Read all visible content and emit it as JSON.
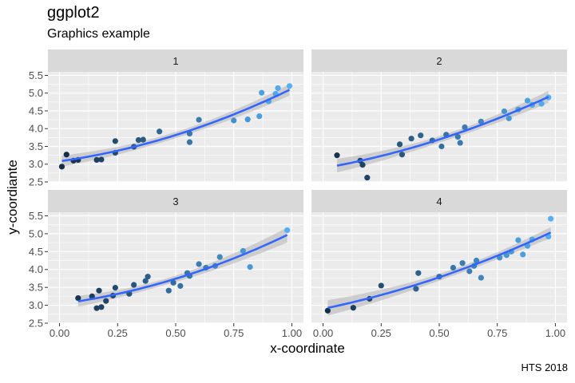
{
  "title": "ggplot2",
  "subtitle": "Graphics example",
  "caption": "HTS 2018",
  "colors": {
    "panel_bg": "#ebebeb",
    "strip_bg": "#d9d9d9",
    "grid": "#ffffff",
    "line": "#3366ff",
    "ribbon": "#b3b3b3",
    "point_low": "#132b43",
    "point_high": "#56b1f7"
  },
  "chart_data": {
    "type": "scatter",
    "facets": [
      "1",
      "2",
      "3",
      "4"
    ],
    "xlabel": "x-coordinate",
    "ylabel": "y-coordiante",
    "xlim": [
      -0.05,
      1.05
    ],
    "ylim": [
      2.5,
      5.6
    ],
    "xticks": [
      0.0,
      0.25,
      0.5,
      0.75,
      1.0
    ],
    "xtick_labels": [
      "0.00",
      "0.25",
      "0.50",
      "0.75",
      "1.00"
    ],
    "yticks": [
      2.5,
      3.0,
      3.5,
      4.0,
      4.5,
      5.0,
      5.5
    ],
    "ytick_labels": [
      "2.5",
      "3.0",
      "3.5",
      "4.0",
      "4.5",
      "5.0",
      "5.5"
    ],
    "smooth": "quadratic fit with confidence band",
    "color_scale": "continuous by x, dark blue to light blue",
    "panels": [
      {
        "facet": "1",
        "points": [
          [
            0.01,
            2.93
          ],
          [
            0.03,
            3.27
          ],
          [
            0.06,
            3.1
          ],
          [
            0.08,
            3.12
          ],
          [
            0.16,
            3.12
          ],
          [
            0.18,
            3.13
          ],
          [
            0.24,
            3.32
          ],
          [
            0.24,
            3.65
          ],
          [
            0.32,
            3.49
          ],
          [
            0.34,
            3.68
          ],
          [
            0.36,
            3.69
          ],
          [
            0.43,
            3.92
          ],
          [
            0.56,
            3.86
          ],
          [
            0.56,
            3.62
          ],
          [
            0.6,
            4.25
          ],
          [
            0.75,
            4.23
          ],
          [
            0.81,
            4.26
          ],
          [
            0.86,
            4.35
          ],
          [
            0.87,
            5.01
          ],
          [
            0.9,
            4.77
          ],
          [
            0.93,
            4.98
          ],
          [
            0.94,
            5.14
          ],
          [
            0.99,
            5.2
          ]
        ],
        "fit": [
          [
            0.01,
            3.09
          ],
          [
            0.25,
            3.37
          ],
          [
            0.5,
            3.81
          ],
          [
            0.75,
            4.39
          ],
          [
            0.99,
            5.08
          ]
        ]
      },
      {
        "facet": "2",
        "points": [
          [
            0.06,
            3.25
          ],
          [
            0.16,
            3.1
          ],
          [
            0.17,
            2.98
          ],
          [
            0.19,
            2.62
          ],
          [
            0.33,
            3.56
          ],
          [
            0.34,
            3.27
          ],
          [
            0.38,
            3.72
          ],
          [
            0.42,
            3.81
          ],
          [
            0.47,
            3.67
          ],
          [
            0.51,
            3.5
          ],
          [
            0.53,
            3.83
          ],
          [
            0.58,
            3.77
          ],
          [
            0.59,
            3.6
          ],
          [
            0.61,
            4.04
          ],
          [
            0.68,
            4.2
          ],
          [
            0.78,
            4.49
          ],
          [
            0.8,
            4.29
          ],
          [
            0.84,
            4.54
          ],
          [
            0.88,
            4.79
          ],
          [
            0.9,
            4.67
          ],
          [
            0.94,
            4.7
          ],
          [
            0.97,
            4.88
          ]
        ],
        "fit": [
          [
            0.06,
            2.98
          ],
          [
            0.3,
            3.32
          ],
          [
            0.55,
            3.77
          ],
          [
            0.8,
            4.33
          ],
          [
            0.97,
            4.85
          ]
        ]
      },
      {
        "facet": "3",
        "points": [
          [
            0.08,
            3.2
          ],
          [
            0.14,
            3.25
          ],
          [
            0.16,
            2.92
          ],
          [
            0.17,
            3.41
          ],
          [
            0.18,
            2.95
          ],
          [
            0.2,
            3.12
          ],
          [
            0.23,
            3.27
          ],
          [
            0.24,
            3.49
          ],
          [
            0.3,
            3.32
          ],
          [
            0.32,
            3.57
          ],
          [
            0.37,
            3.68
          ],
          [
            0.38,
            3.8
          ],
          [
            0.47,
            3.41
          ],
          [
            0.49,
            3.63
          ],
          [
            0.52,
            3.54
          ],
          [
            0.55,
            3.9
          ],
          [
            0.56,
            3.82
          ],
          [
            0.6,
            4.15
          ],
          [
            0.63,
            4.05
          ],
          [
            0.67,
            4.1
          ],
          [
            0.69,
            4.35
          ],
          [
            0.79,
            4.52
          ],
          [
            0.82,
            4.07
          ],
          [
            0.98,
            5.1
          ]
        ],
        "fit": [
          [
            0.08,
            3.16
          ],
          [
            0.3,
            3.39
          ],
          [
            0.55,
            3.8
          ],
          [
            0.8,
            4.35
          ],
          [
            0.98,
            4.93
          ]
        ]
      },
      {
        "facet": "4",
        "points": [
          [
            0.02,
            2.85
          ],
          [
            0.13,
            2.93
          ],
          [
            0.2,
            3.18
          ],
          [
            0.25,
            3.55
          ],
          [
            0.4,
            3.46
          ],
          [
            0.41,
            3.9
          ],
          [
            0.5,
            3.8
          ],
          [
            0.56,
            4.05
          ],
          [
            0.6,
            4.18
          ],
          [
            0.63,
            3.95
          ],
          [
            0.65,
            4.1
          ],
          [
            0.66,
            4.25
          ],
          [
            0.68,
            3.77
          ],
          [
            0.76,
            4.33
          ],
          [
            0.79,
            4.4
          ],
          [
            0.81,
            4.5
          ],
          [
            0.84,
            4.82
          ],
          [
            0.86,
            4.42
          ],
          [
            0.88,
            4.66
          ],
          [
            0.9,
            4.84
          ],
          [
            0.97,
            4.92
          ],
          [
            0.98,
            5.42
          ]
        ],
        "fit": [
          [
            0.02,
            2.9
          ],
          [
            0.25,
            3.28
          ],
          [
            0.5,
            3.77
          ],
          [
            0.75,
            4.33
          ],
          [
            0.98,
            4.96
          ]
        ]
      }
    ]
  }
}
